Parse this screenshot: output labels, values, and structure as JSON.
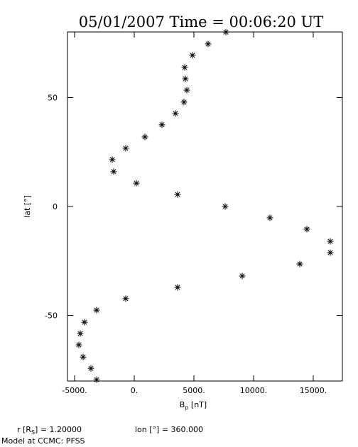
{
  "chart_data": {
    "type": "scatter",
    "title": "05/01/2007 Time = 00:06:20 UT",
    "xlabel": {
      "base": "B",
      "sub": "p",
      "rest": " [nT]"
    },
    "ylabel": "lat  [°]",
    "footer": {
      "r_base": "r [R",
      "r_sub": "S",
      "r_rest": "] = 1.20000",
      "lon": "lon [°] = 360.000",
      "model": "Model at CCMC: PFSS"
    },
    "color": "#000000",
    "xlim": [
      -5595,
      17440
    ],
    "ylim": [
      -80.1,
      80.1
    ],
    "xticks": [
      {
        "value": -5000,
        "label": "-5000."
      },
      {
        "value": 0,
        "label": "0."
      },
      {
        "value": 5000,
        "label": "5000."
      },
      {
        "value": 10000,
        "label": "10000."
      },
      {
        "value": 15000,
        "label": "15000."
      }
    ],
    "yticks": [
      -50,
      0,
      50
    ],
    "x": [
      7679,
      6190,
      4881,
      4226,
      4286,
      4405,
      4167,
      3452,
      2321,
      893,
      -714,
      -1845,
      -1726,
      179,
      3631,
      7619,
      11369,
      14464,
      16429,
      16429,
      13869,
      9048,
      3631,
      -714,
      -3155,
      -4167,
      -4524,
      -4643,
      -4286,
      -3631,
      -3155
    ],
    "values": [
      80,
      74.6,
      69.4,
      63.8,
      58.6,
      53.4,
      47.9,
      42.7,
      37.5,
      31.9,
      26.7,
      21.5,
      16.0,
      10.7,
      5.5,
      0,
      -5.2,
      -10.4,
      -16,
      -21.2,
      -26.4,
      -31.9,
      -37.1,
      -42.3,
      -47.6,
      -53.1,
      -58.3,
      -63.5,
      -69.1,
      -74.3,
      -79.5
    ]
  }
}
